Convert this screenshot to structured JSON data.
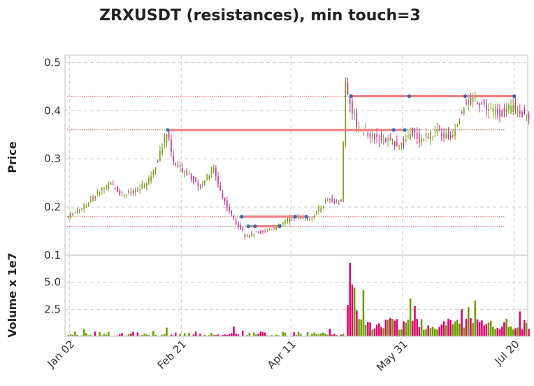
{
  "chart_data": {
    "type": "candlestick",
    "title": "ZRXUSDT (resistances), min touch=3",
    "price_axis": {
      "label": "Price",
      "ylim": [
        0.1,
        0.515
      ],
      "ticks": [
        0.1,
        0.2,
        0.3,
        0.4,
        0.5
      ],
      "tick_labels": [
        "0.1",
        "0.2",
        "0.3",
        "0.4",
        "0.5"
      ]
    },
    "volume_axis": {
      "label": "Volume x 1e7",
      "ylim": [
        0,
        7.5
      ],
      "ticks": [
        2.5,
        5.0
      ],
      "tick_labels": [
        "2.5",
        "5.0"
      ]
    },
    "x_axis": {
      "start_date": "2020-12-31",
      "end_date": "2021-07-26",
      "ticks": [
        "2021-01-02",
        "2021-02-21",
        "2021-04-11",
        "2021-05-31",
        "2021-07-20"
      ],
      "tick_labels": [
        "Jan 02",
        "Feb 21",
        "Apr 11",
        "May 31",
        "Jul 20"
      ]
    },
    "colors": {
      "up": "#7a9e1a",
      "down": "#c2338e",
      "vol_up": "#6b9e00",
      "vol_down": "#e0006e",
      "resistance": "#f08080",
      "level_dotted": "#cc3333",
      "touch": "#2c6fb0"
    },
    "grid": true,
    "resistance_levels": [
      {
        "price": 0.43,
        "start": "2021-05-08",
        "end": "2021-07-20",
        "touches": [
          "2021-05-08",
          "2021-06-03",
          "2021-06-28",
          "2021-07-20"
        ]
      },
      {
        "price": 0.36,
        "start": "2021-02-15",
        "end": "2021-06-01",
        "touches": [
          "2021-02-15",
          "2021-05-27",
          "2021-06-01"
        ]
      },
      {
        "price": 0.18,
        "start": "2021-03-20",
        "end": "2021-04-18",
        "touches": [
          "2021-03-20",
          "2021-04-13",
          "2021-04-18"
        ]
      },
      {
        "price": 0.16,
        "start": "2021-03-23",
        "end": "2021-04-06",
        "touches": [
          "2021-03-23",
          "2021-03-26",
          "2021-04-06"
        ]
      }
    ],
    "dotted_levels": [
      0.43,
      0.36,
      0.18,
      0.16
    ],
    "price_anchors": [
      [
        "2021-01-01",
        0.178
      ],
      [
        "2021-01-10",
        0.205
      ],
      [
        "2021-01-20",
        0.25
      ],
      [
        "2021-01-26",
        0.228
      ],
      [
        "2021-02-01",
        0.23
      ],
      [
        "2021-02-07",
        0.255
      ],
      [
        "2021-02-11",
        0.3
      ],
      [
        "2021-02-15",
        0.355
      ],
      [
        "2021-02-18",
        0.29
      ],
      [
        "2021-02-25",
        0.27
      ],
      [
        "2021-03-01",
        0.24
      ],
      [
        "2021-03-08",
        0.28
      ],
      [
        "2021-03-12",
        0.22
      ],
      [
        "2021-03-17",
        0.175
      ],
      [
        "2021-03-22",
        0.14
      ],
      [
        "2021-03-30",
        0.15
      ],
      [
        "2021-04-06",
        0.16
      ],
      [
        "2021-04-12",
        0.18
      ],
      [
        "2021-04-20",
        0.175
      ],
      [
        "2021-04-28",
        0.215
      ],
      [
        "2021-05-04",
        0.21
      ],
      [
        "2021-05-06",
        0.46
      ],
      [
        "2021-05-09",
        0.4
      ],
      [
        "2021-05-12",
        0.36
      ],
      [
        "2021-05-20",
        0.345
      ],
      [
        "2021-05-26",
        0.335
      ],
      [
        "2021-06-01",
        0.33
      ],
      [
        "2021-06-04",
        0.36
      ],
      [
        "2021-06-08",
        0.34
      ],
      [
        "2021-06-15",
        0.355
      ],
      [
        "2021-06-22",
        0.345
      ],
      [
        "2021-06-28",
        0.41
      ],
      [
        "2021-07-03",
        0.425
      ],
      [
        "2021-07-10",
        0.4
      ],
      [
        "2021-07-16",
        0.395
      ],
      [
        "2021-07-20",
        0.41
      ],
      [
        "2021-07-26",
        0.39
      ]
    ],
    "volume_bursts": [
      [
        "2021-01-08",
        0.7
      ],
      [
        "2021-01-15",
        0.4
      ],
      [
        "2021-02-08",
        0.5
      ],
      [
        "2021-02-14",
        0.8
      ],
      [
        "2021-03-16",
        0.9
      ],
      [
        "2021-03-20",
        0.5
      ],
      [
        "2021-04-14",
        0.4
      ],
      [
        "2021-04-28",
        0.7
      ],
      [
        "2021-05-06",
        2.9
      ],
      [
        "2021-05-07",
        6.8
      ],
      [
        "2021-05-08",
        4.8
      ],
      [
        "2021-05-09",
        4.5
      ],
      [
        "2021-05-10",
        2.4
      ],
      [
        "2021-05-13",
        4.3
      ],
      [
        "2021-05-16",
        1.3
      ],
      [
        "2021-05-20",
        1.2
      ],
      [
        "2021-05-25",
        1.7
      ],
      [
        "2021-06-03",
        3.5
      ],
      [
        "2021-06-05",
        2.8
      ],
      [
        "2021-06-11",
        1.0
      ],
      [
        "2021-06-17",
        1.1
      ],
      [
        "2021-06-26",
        2.5
      ],
      [
        "2021-06-29",
        2.7
      ],
      [
        "2021-07-02",
        3.3
      ],
      [
        "2021-07-22",
        2.3
      ],
      [
        "2021-07-24",
        1.5
      ]
    ]
  }
}
